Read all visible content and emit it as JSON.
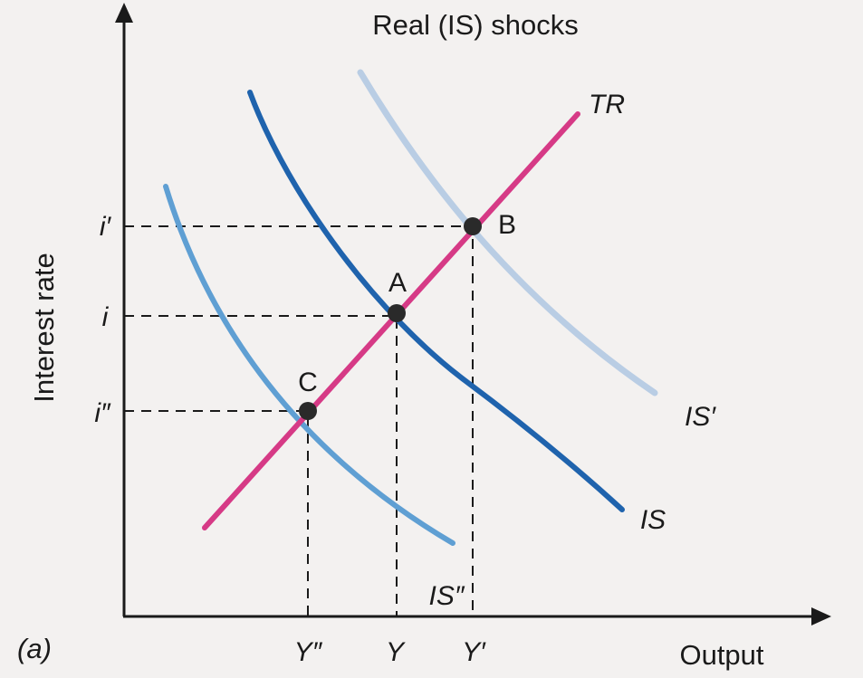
{
  "title": "Real (IS) shocks",
  "panel_label": "(a)",
  "axes": {
    "y_label": "Interest rate",
    "x_label": "Output",
    "y_ticks": [
      "i′",
      "i",
      "i″"
    ],
    "x_ticks": [
      "Y″",
      "Y",
      "Y′"
    ]
  },
  "curves": [
    {
      "name": "TR",
      "label": "TR",
      "color": "#d63a86"
    },
    {
      "name": "IS",
      "label": "IS",
      "color": "#1f63ad"
    },
    {
      "name": "IS-prime",
      "label": "IS′",
      "color": "#b9cde4"
    },
    {
      "name": "IS-double-prime",
      "label": "IS″",
      "color": "#5f9fd3"
    }
  ],
  "points": [
    {
      "name": "A",
      "label": "A",
      "x_tick": "Y",
      "y_tick": "i"
    },
    {
      "name": "B",
      "label": "B",
      "x_tick": "Y′",
      "y_tick": "i′"
    },
    {
      "name": "C",
      "label": "C",
      "x_tick": "Y″",
      "y_tick": "i″"
    }
  ]
}
